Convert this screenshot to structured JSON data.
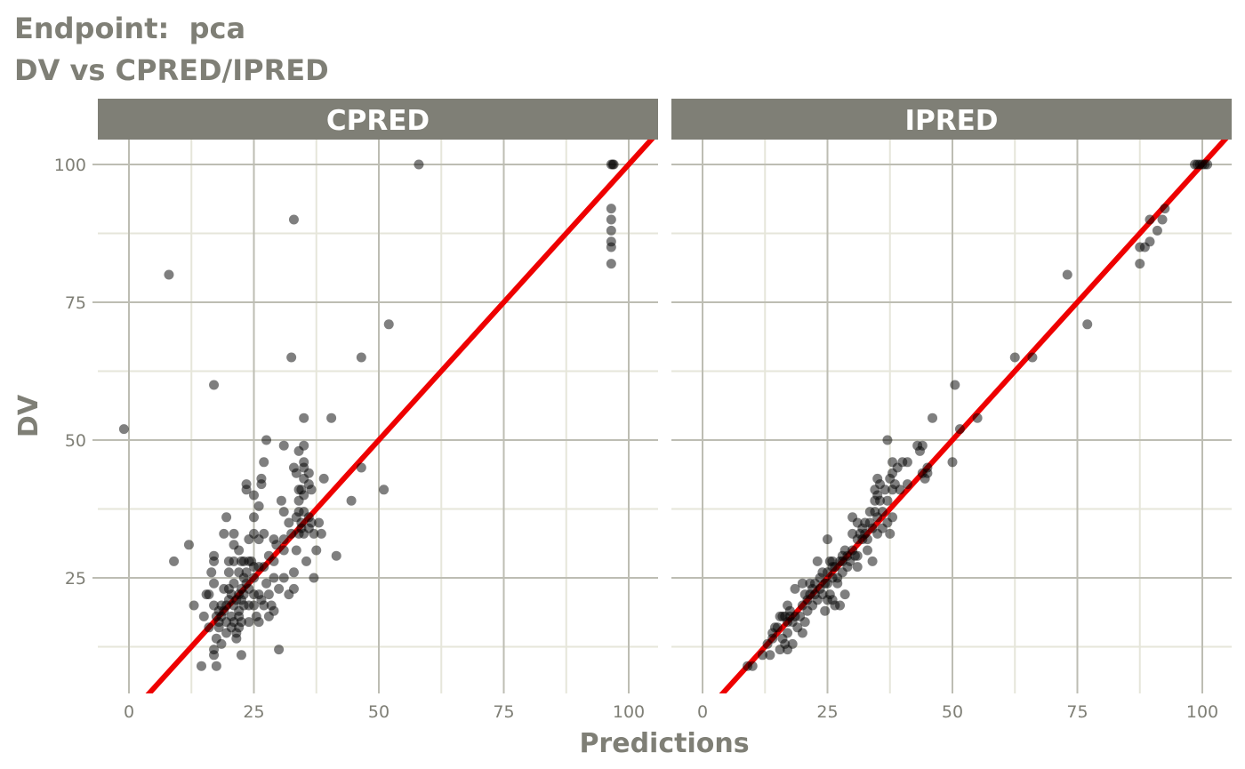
{
  "title_line1": "Endpoint:  pca",
  "title_line2": "DV vs CPRED/IPRED",
  "colors": {
    "strip_bg": "#7f7f76",
    "grid_major": "#bdbdb3",
    "grid_minor": "#e6e6da",
    "point": "#000000",
    "identity_line": "#ee0000",
    "text": "#7f7f76"
  },
  "chart_data": {
    "type": "scatter",
    "xlabel": "Predictions",
    "ylabel": "DV",
    "xlim": [
      -2,
      105
    ],
    "ylim": [
      5,
      105
    ],
    "x_ticks": [
      0,
      25,
      50,
      75,
      100
    ],
    "y_ticks": [
      25,
      50,
      75,
      100
    ],
    "grid": true,
    "reference_line": "identity (y = x)",
    "panels": [
      {
        "label": "CPRED",
        "points": [
          [
            -1,
            52
          ],
          [
            8,
            80
          ],
          [
            9,
            28
          ],
          [
            12,
            31
          ],
          [
            13,
            20
          ],
          [
            14.5,
            9
          ],
          [
            15,
            18
          ],
          [
            15.5,
            22
          ],
          [
            16,
            16
          ],
          [
            16,
            22
          ],
          [
            16.5,
            26
          ],
          [
            17,
            60
          ],
          [
            17,
            28
          ],
          [
            17,
            29
          ],
          [
            17,
            24
          ],
          [
            17,
            12
          ],
          [
            17,
            11
          ],
          [
            17,
            20
          ],
          [
            17.5,
            14
          ],
          [
            17.5,
            18
          ],
          [
            17.5,
            9
          ],
          [
            18,
            17
          ],
          [
            18,
            16
          ],
          [
            18,
            19
          ],
          [
            18.5,
            20
          ],
          [
            18.5,
            13
          ],
          [
            18.5,
            18
          ],
          [
            19,
            33
          ],
          [
            19,
            19
          ],
          [
            19,
            23
          ],
          [
            19.5,
            36
          ],
          [
            19.5,
            20
          ],
          [
            19.5,
            17
          ],
          [
            19.5,
            15
          ],
          [
            20,
            28
          ],
          [
            20,
            26
          ],
          [
            20,
            21
          ],
          [
            20,
            23
          ],
          [
            20.5,
            22
          ],
          [
            20.5,
            18
          ],
          [
            20.5,
            16
          ],
          [
            21,
            33
          ],
          [
            21,
            31
          ],
          [
            21,
            28
          ],
          [
            21,
            24
          ],
          [
            21,
            20
          ],
          [
            21,
            17
          ],
          [
            21.5,
            15
          ],
          [
            21.5,
            14
          ],
          [
            21.5,
            21
          ],
          [
            22,
            30
          ],
          [
            22,
            26
          ],
          [
            22,
            22
          ],
          [
            22,
            19
          ],
          [
            22,
            18
          ],
          [
            22,
            16
          ],
          [
            22.5,
            28
          ],
          [
            22.5,
            23
          ],
          [
            22.5,
            21
          ],
          [
            22.5,
            17
          ],
          [
            22.5,
            11
          ],
          [
            23,
            28
          ],
          [
            23,
            25
          ],
          [
            23,
            22
          ],
          [
            23,
            20
          ],
          [
            23.5,
            42
          ],
          [
            23.5,
            41
          ],
          [
            23.5,
            26
          ],
          [
            23.5,
            24
          ],
          [
            24,
            32
          ],
          [
            24,
            28
          ],
          [
            24,
            23
          ],
          [
            24,
            20
          ],
          [
            24,
            17
          ],
          [
            24.5,
            28
          ],
          [
            25,
            40
          ],
          [
            25,
            36
          ],
          [
            25,
            33
          ],
          [
            25,
            27
          ],
          [
            25,
            25
          ],
          [
            25,
            22
          ],
          [
            25,
            20
          ],
          [
            25.5,
            18
          ],
          [
            26,
            38
          ],
          [
            26,
            32
          ],
          [
            26,
            27
          ],
          [
            26,
            22
          ],
          [
            26,
            17
          ],
          [
            26.5,
            43
          ],
          [
            26.5,
            42
          ],
          [
            26.5,
            21
          ],
          [
            27,
            46
          ],
          [
            27,
            33
          ],
          [
            27,
            27
          ],
          [
            27,
            20
          ],
          [
            27.5,
            50
          ],
          [
            27.5,
            24
          ],
          [
            28,
            29
          ],
          [
            28,
            22
          ],
          [
            28,
            18
          ],
          [
            28.5,
            20
          ],
          [
            29,
            32
          ],
          [
            29,
            28
          ],
          [
            29,
            25
          ],
          [
            29,
            19
          ],
          [
            29.5,
            31
          ],
          [
            30,
            12
          ],
          [
            30,
            23
          ],
          [
            30.5,
            39
          ],
          [
            31,
            49
          ],
          [
            31,
            37
          ],
          [
            31,
            32
          ],
          [
            31,
            30
          ],
          [
            31,
            25
          ],
          [
            32,
            35
          ],
          [
            32,
            22
          ],
          [
            32.5,
            65
          ],
          [
            32.5,
            33
          ],
          [
            33,
            90
          ],
          [
            33,
            45
          ],
          [
            33,
            26
          ],
          [
            33,
            23
          ],
          [
            33.5,
            44
          ],
          [
            33.5,
            36
          ],
          [
            33.5,
            30
          ],
          [
            34,
            48
          ],
          [
            34,
            41
          ],
          [
            34,
            39
          ],
          [
            34,
            37
          ],
          [
            34,
            33
          ],
          [
            34.5,
            41
          ],
          [
            34.5,
            35
          ],
          [
            34.5,
            34
          ],
          [
            35,
            54
          ],
          [
            35,
            49
          ],
          [
            35,
            46
          ],
          [
            35,
            45
          ],
          [
            35,
            43
          ],
          [
            35,
            40
          ],
          [
            35,
            37
          ],
          [
            35,
            33
          ],
          [
            35.5,
            28
          ],
          [
            36,
            44
          ],
          [
            36,
            42
          ],
          [
            36,
            36
          ],
          [
            36,
            34
          ],
          [
            36.5,
            41
          ],
          [
            36.5,
            35
          ],
          [
            37,
            33
          ],
          [
            37,
            25
          ],
          [
            37.5,
            30
          ],
          [
            38,
            35
          ],
          [
            38.5,
            33
          ],
          [
            39,
            43
          ],
          [
            40.5,
            54
          ],
          [
            41.5,
            29
          ],
          [
            44.5,
            39
          ],
          [
            46.5,
            65
          ],
          [
            46.5,
            45
          ],
          [
            51,
            41
          ],
          [
            52,
            71
          ],
          [
            58,
            100
          ],
          [
            96.5,
            100
          ],
          [
            96.5,
            92
          ],
          [
            96.5,
            90
          ],
          [
            96.5,
            88
          ],
          [
            96.5,
            86
          ],
          [
            96.5,
            85
          ],
          [
            96.5,
            82
          ],
          [
            96.8,
            100
          ],
          [
            97,
            100
          ]
        ]
      },
      {
        "label": "IPRED",
        "points": [
          [
            9,
            9
          ],
          [
            10,
            9
          ],
          [
            12,
            11
          ],
          [
            13,
            13
          ],
          [
            13.5,
            11
          ],
          [
            14,
            15
          ],
          [
            14,
            14
          ],
          [
            14.5,
            16
          ],
          [
            15,
            16
          ],
          [
            15.5,
            18
          ],
          [
            15.5,
            12
          ],
          [
            16,
            18
          ],
          [
            16,
            14
          ],
          [
            16.5,
            18
          ],
          [
            16.5,
            13
          ],
          [
            17,
            20
          ],
          [
            17,
            17
          ],
          [
            17,
            15
          ],
          [
            17,
            12
          ],
          [
            17.5,
            19
          ],
          [
            17.5,
            18
          ],
          [
            18,
            17
          ],
          [
            18,
            13
          ],
          [
            18.5,
            23
          ],
          [
            18.5,
            18
          ],
          [
            19,
            16
          ],
          [
            19.5,
            18
          ],
          [
            20,
            24
          ],
          [
            20,
            20
          ],
          [
            20,
            15
          ],
          [
            20.5,
            22
          ],
          [
            20.5,
            17
          ],
          [
            21,
            21
          ],
          [
            21,
            19
          ],
          [
            21.5,
            24
          ],
          [
            21.5,
            22
          ],
          [
            22,
            23
          ],
          [
            22,
            20
          ],
          [
            22.5,
            24
          ],
          [
            22.5,
            22
          ],
          [
            23,
            28
          ],
          [
            23,
            21
          ],
          [
            23.5,
            25
          ],
          [
            23.5,
            23
          ],
          [
            24,
            26
          ],
          [
            24,
            22
          ],
          [
            24.5,
            24
          ],
          [
            24.5,
            19
          ],
          [
            25,
            32
          ],
          [
            25,
            26
          ],
          [
            25,
            24
          ],
          [
            25,
            21
          ],
          [
            25.5,
            28
          ],
          [
            25.5,
            22
          ],
          [
            26,
            28
          ],
          [
            26,
            27
          ],
          [
            26,
            25
          ],
          [
            26,
            21
          ],
          [
            26.5,
            27
          ],
          [
            26.5,
            20
          ],
          [
            27,
            25
          ],
          [
            27,
            24
          ],
          [
            27.5,
            28
          ],
          [
            27.5,
            20
          ],
          [
            28,
            29
          ],
          [
            28,
            28
          ],
          [
            28,
            26
          ],
          [
            28.5,
            30
          ],
          [
            28.5,
            22
          ],
          [
            29,
            29
          ],
          [
            29,
            27
          ],
          [
            29.5,
            28
          ],
          [
            30,
            36
          ],
          [
            30,
            33
          ],
          [
            30,
            30
          ],
          [
            30.5,
            29
          ],
          [
            31,
            35
          ],
          [
            31,
            32
          ],
          [
            31,
            29
          ],
          [
            31,
            27
          ],
          [
            31.5,
            33
          ],
          [
            32,
            34
          ],
          [
            32,
            32
          ],
          [
            32.5,
            35
          ],
          [
            32.5,
            33
          ],
          [
            33,
            32
          ],
          [
            33,
            30
          ],
          [
            33.5,
            37
          ],
          [
            33.5,
            35
          ],
          [
            34,
            34
          ],
          [
            34,
            28
          ],
          [
            34.5,
            41
          ],
          [
            34.5,
            39
          ],
          [
            34.5,
            37
          ],
          [
            35,
            43
          ],
          [
            35,
            40
          ],
          [
            35,
            36
          ],
          [
            35,
            33
          ],
          [
            35.5,
            42
          ],
          [
            35.5,
            39
          ],
          [
            36,
            37
          ],
          [
            36,
            34
          ],
          [
            36.5,
            41
          ],
          [
            37,
            50
          ],
          [
            37,
            39
          ],
          [
            37,
            35
          ],
          [
            37.5,
            43
          ],
          [
            37.5,
            33
          ],
          [
            38,
            46
          ],
          [
            38,
            44
          ],
          [
            38,
            41
          ],
          [
            38,
            36
          ],
          [
            38.5,
            42
          ],
          [
            39,
            45
          ],
          [
            39.5,
            41
          ],
          [
            40,
            46
          ],
          [
            41,
            42
          ],
          [
            41,
            46
          ],
          [
            43,
            49
          ],
          [
            43.5,
            48
          ],
          [
            44,
            49
          ],
          [
            44,
            44
          ],
          [
            44.5,
            43
          ],
          [
            45,
            45
          ],
          [
            45,
            44
          ],
          [
            46,
            54
          ],
          [
            50,
            46
          ],
          [
            50.5,
            60
          ],
          [
            51.5,
            52
          ],
          [
            55,
            54
          ],
          [
            62.5,
            65
          ],
          [
            66,
            65
          ],
          [
            73,
            80
          ],
          [
            77,
            71
          ],
          [
            87.5,
            85
          ],
          [
            87.5,
            82
          ],
          [
            88.5,
            85
          ],
          [
            89.5,
            86
          ],
          [
            89.5,
            90
          ],
          [
            91,
            88
          ],
          [
            92,
            90
          ],
          [
            92.5,
            92
          ],
          [
            98.5,
            100
          ],
          [
            99,
            100
          ],
          [
            99.5,
            100
          ],
          [
            100,
            100
          ],
          [
            100.5,
            100
          ],
          [
            101,
            100
          ]
        ]
      }
    ]
  }
}
